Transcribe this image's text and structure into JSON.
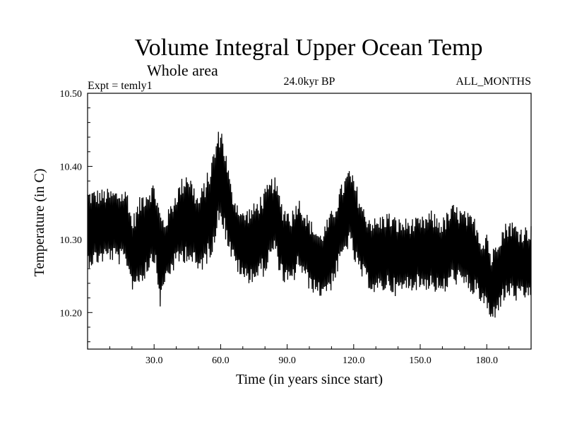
{
  "chart_data": {
    "type": "line",
    "title": "Volume Integral Upper Ocean Temp",
    "subtitle": "Whole area",
    "annotations": {
      "experiment": "Expt = temly1",
      "period": "24.0kyr BP",
      "months": "ALL_MONTHS"
    },
    "xlabel": "Time (in years since start)",
    "ylabel": "Temperature (in C)",
    "xlim": [
      0,
      200
    ],
    "ylim": [
      10.15,
      10.5
    ],
    "x_ticks": [
      30.0,
      60.0,
      90.0,
      120.0,
      150.0,
      180.0
    ],
    "x_tick_labels": [
      "30.0",
      "60.0",
      "90.0",
      "120.0",
      "150.0",
      "180.0"
    ],
    "y_ticks": [
      10.2,
      10.3,
      10.4,
      10.5
    ],
    "y_tick_labels": [
      "10.20",
      "10.30",
      "10.40",
      "10.50"
    ],
    "series": [
      {
        "name": "temly1",
        "envelope_x": [
          0,
          10,
          18,
          20,
          25,
          30,
          33,
          35,
          40,
          45,
          50,
          55,
          58,
          60,
          62,
          65,
          70,
          75,
          80,
          84,
          88,
          92,
          95,
          100,
          105,
          110,
          115,
          118,
          122,
          125,
          130,
          135,
          140,
          145,
          150,
          155,
          160,
          165,
          170,
          175,
          178,
          180,
          182,
          185,
          190,
          195,
          200
        ],
        "envelope_upper": [
          10.37,
          10.37,
          10.37,
          10.33,
          10.37,
          10.38,
          10.34,
          10.33,
          10.37,
          10.4,
          10.36,
          10.4,
          10.44,
          10.46,
          10.43,
          10.37,
          10.34,
          10.35,
          10.37,
          10.39,
          10.35,
          10.34,
          10.36,
          10.33,
          10.31,
          10.34,
          10.38,
          10.4,
          10.37,
          10.34,
          10.33,
          10.34,
          10.33,
          10.33,
          10.33,
          10.34,
          10.33,
          10.35,
          10.34,
          10.33,
          10.3,
          10.32,
          10.28,
          10.31,
          10.33,
          10.32,
          10.32
        ],
        "envelope_lower": [
          10.26,
          10.27,
          10.26,
          10.23,
          10.24,
          10.27,
          10.2,
          10.24,
          10.26,
          10.27,
          10.25,
          10.27,
          10.3,
          10.33,
          10.3,
          10.27,
          10.24,
          10.24,
          10.25,
          10.28,
          10.24,
          10.23,
          10.26,
          10.23,
          10.22,
          10.23,
          10.27,
          10.29,
          10.25,
          10.24,
          10.22,
          10.23,
          10.22,
          10.23,
          10.23,
          10.23,
          10.22,
          10.24,
          10.23,
          10.22,
          10.21,
          10.2,
          10.18,
          10.2,
          10.22,
          10.21,
          10.22
        ]
      }
    ],
    "grid": false,
    "line_color": "#000000"
  }
}
